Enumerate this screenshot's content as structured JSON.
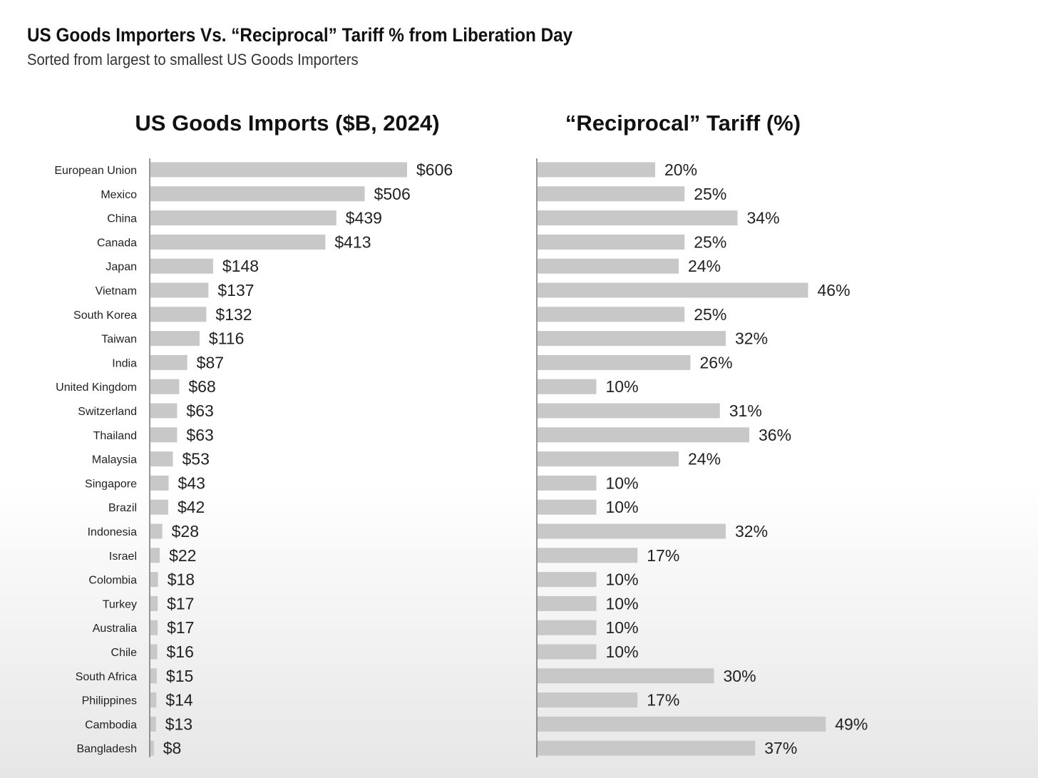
{
  "header": {
    "title": "US Goods Importers Vs. “Reciprocal” Tariff % from Liberation Day",
    "subtitle": "Sorted from largest to smallest US Goods Importers"
  },
  "chart_data": [
    {
      "type": "bar",
      "orientation": "horizontal",
      "title": "US Goods Imports ($B, 2024)",
      "categories": [
        "European Union",
        "Mexico",
        "China",
        "Canada",
        "Japan",
        "Vietnam",
        "South Korea",
        "Taiwan",
        "India",
        "United Kingdom",
        "Switzerland",
        "Thailand",
        "Malaysia",
        "Singapore",
        "Brazil",
        "Indonesia",
        "Israel",
        "Colombia",
        "Turkey",
        "Australia",
        "Chile",
        "South Africa",
        "Philippines",
        "Cambodia",
        "Bangladesh"
      ],
      "values": [
        606,
        506,
        439,
        413,
        148,
        137,
        132,
        116,
        87,
        68,
        63,
        63,
        53,
        43,
        42,
        28,
        22,
        18,
        17,
        17,
        16,
        15,
        14,
        13,
        8
      ],
      "value_labels": [
        "$606",
        "$506",
        "$439",
        "$413",
        "$148",
        "$137",
        "$132",
        "$116",
        "$87",
        "$68",
        "$63",
        "$63",
        "$53",
        "$43",
        "$42",
        "$28",
        "$22",
        "$18",
        "$17",
        "$17",
        "$16",
        "$15",
        "$14",
        "$13",
        "$8"
      ],
      "xlim": [
        0,
        650
      ],
      "grid": false,
      "bar_color": "#c8c8c8"
    },
    {
      "type": "bar",
      "orientation": "horizontal",
      "title": "“Reciprocal” Tariff (%)",
      "categories": [
        "European Union",
        "Mexico",
        "China",
        "Canada",
        "Japan",
        "Vietnam",
        "South Korea",
        "Taiwan",
        "India",
        "United Kingdom",
        "Switzerland",
        "Thailand",
        "Malaysia",
        "Singapore",
        "Brazil",
        "Indonesia",
        "Israel",
        "Colombia",
        "Turkey",
        "Australia",
        "Chile",
        "South Africa",
        "Philippines",
        "Cambodia",
        "Bangladesh"
      ],
      "values": [
        20,
        25,
        34,
        25,
        24,
        46,
        25,
        32,
        26,
        10,
        31,
        36,
        24,
        10,
        10,
        32,
        17,
        10,
        10,
        10,
        10,
        30,
        17,
        49,
        37
      ],
      "value_labels": [
        "20%",
        "25%",
        "34%",
        "25%",
        "24%",
        "46%",
        "25%",
        "32%",
        "26%",
        "10%",
        "31%",
        "36%",
        "24%",
        "10%",
        "10%",
        "32%",
        "17%",
        "10%",
        "10%",
        "10%",
        "10%",
        "30%",
        "17%",
        "49%",
        "37%"
      ],
      "xlim": [
        0,
        55
      ],
      "grid": false,
      "bar_color": "#c8c8c8"
    }
  ]
}
